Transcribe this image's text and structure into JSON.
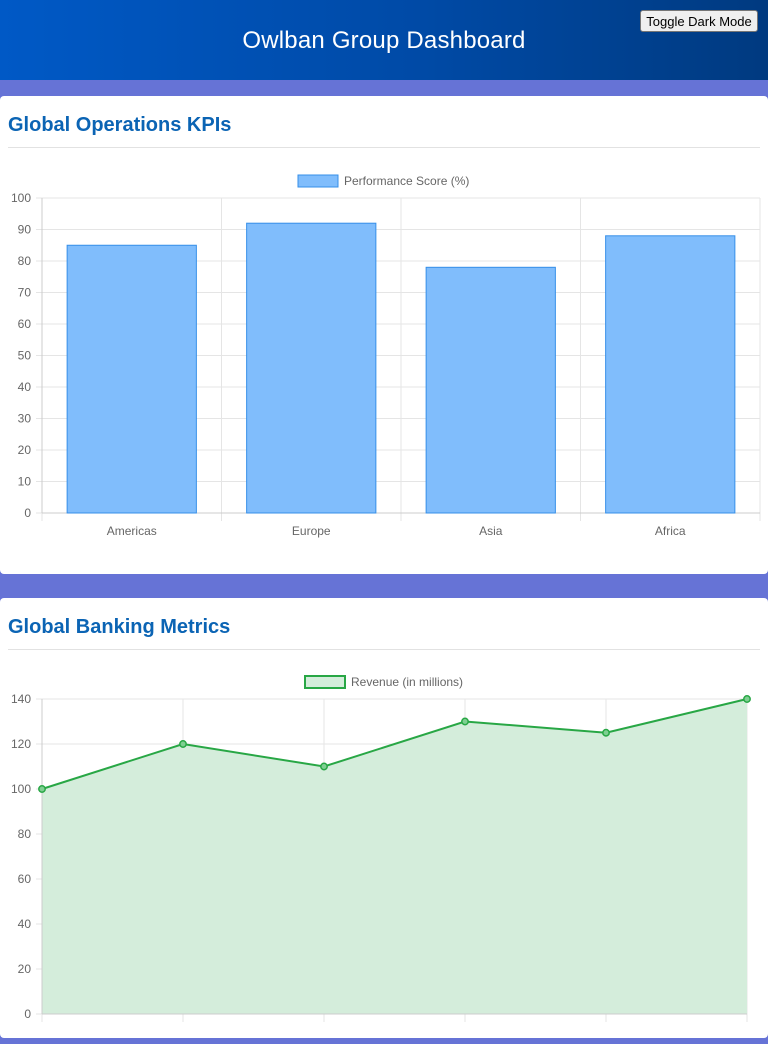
{
  "header": {
    "title": "Owlban Group Dashboard",
    "toggle_label": "Toggle Dark Mode"
  },
  "sections": [
    {
      "title": "Global Operations KPIs"
    },
    {
      "title": "Global Banking Metrics"
    }
  ],
  "colors": {
    "header_start": "#0059c6",
    "header_end": "#003a80",
    "page_background": "#6673d6",
    "section_title": "#0b64b4",
    "bar_fill": "#80bdfc",
    "bar_border": "#368fe8",
    "line_stroke": "#28a745",
    "area_fill": "#d4eddb"
  },
  "chart_data": [
    {
      "type": "bar",
      "categories": [
        "Americas",
        "Europe",
        "Asia",
        "Africa"
      ],
      "series": [
        {
          "name": "Performance Score (%)",
          "values": [
            85,
            92,
            78,
            88
          ]
        }
      ],
      "ylim": [
        0,
        100
      ],
      "yticks": [
        0,
        10,
        20,
        30,
        40,
        50,
        60,
        70,
        80,
        90,
        100
      ],
      "grid": true,
      "legend": "top-center"
    },
    {
      "type": "area",
      "x": [
        "",
        "",
        "",
        "",
        "",
        ""
      ],
      "series": [
        {
          "name": "Revenue (in millions)",
          "values": [
            100,
            120,
            110,
            130,
            125,
            140
          ]
        }
      ],
      "ylim": [
        0,
        140
      ],
      "yticks": [
        0,
        20,
        40,
        60,
        80,
        100,
        120,
        140
      ],
      "grid": true,
      "legend": "top-center"
    }
  ]
}
